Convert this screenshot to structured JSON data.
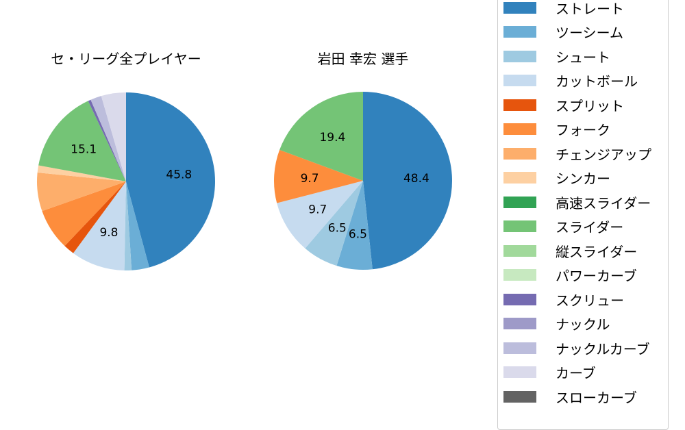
{
  "colors": {
    "ストレート": "#3182bd",
    "ツーシーム": "#6baed6",
    "シュート": "#9ecae1",
    "カットボール": "#c6dbef",
    "スプリット": "#e6550d",
    "フォーク": "#fd8d3c",
    "チェンジアップ": "#fdae6b",
    "シンカー": "#fdd0a2",
    "高速スライダー": "#31a354",
    "スライダー": "#74c476",
    "縦スライダー": "#a1d99b",
    "パワーカーブ": "#c7e9c0",
    "スクリュー": "#756bb1",
    "ナックル": "#9e9ac8",
    "ナックルカーブ": "#bcbddc",
    "カーブ": "#dadaeb",
    "スローカーブ": "#636363"
  },
  "legend": {
    "items": [
      {
        "label": "ストレート"
      },
      {
        "label": "ツーシーム"
      },
      {
        "label": "シュート"
      },
      {
        "label": "カットボール"
      },
      {
        "label": "スプリット"
      },
      {
        "label": "フォーク"
      },
      {
        "label": "チェンジアップ"
      },
      {
        "label": "シンカー"
      },
      {
        "label": "高速スライダー"
      },
      {
        "label": "スライダー"
      },
      {
        "label": "縦スライダー"
      },
      {
        "label": "パワーカーブ"
      },
      {
        "label": "スクリュー"
      },
      {
        "label": "ナックル"
      },
      {
        "label": "ナックルカーブ"
      },
      {
        "label": "カーブ"
      },
      {
        "label": "スローカーブ"
      }
    ]
  },
  "chart_data": [
    {
      "type": "pie",
      "title": "セ・リーグ全プレイヤー",
      "categories": [
        "ストレート",
        "ツーシーム",
        "シュート",
        "カットボール",
        "スプリット",
        "フォーク",
        "チェンジアップ",
        "シンカー",
        "スライダー",
        "スクリュー",
        "ナックルカーブ",
        "カーブ"
      ],
      "values": [
        45.8,
        3.2,
        1.3,
        9.8,
        2.0,
        7.5,
        7.0,
        1.3,
        15.1,
        0.5,
        2.0,
        4.5
      ],
      "labels_shown": [
        "45.8",
        "9.8",
        "15.1"
      ],
      "start_angle": 90,
      "direction": "clockwise",
      "center": [
        184,
        265
      ],
      "radius": 130
    },
    {
      "type": "pie",
      "title": "岩田 幸宏  選手",
      "categories": [
        "ストレート",
        "ツーシーム",
        "シュート",
        "カットボール",
        "フォーク",
        "スライダー"
      ],
      "values": [
        48.4,
        6.5,
        6.5,
        9.7,
        9.7,
        19.4
      ],
      "labels_shown": [
        "48.4",
        "6.5",
        "6.5",
        "9.7",
        "9.7",
        "19.4"
      ],
      "start_angle": 90,
      "direction": "clockwise",
      "center": [
        530,
        264
      ],
      "radius": 130
    }
  ]
}
